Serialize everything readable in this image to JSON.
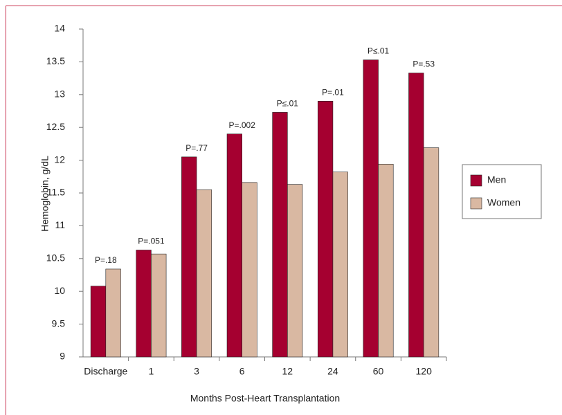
{
  "chart_data": {
    "type": "bar",
    "y_label": "Hemoglobin, g/dL",
    "x_label": "Months Post-Heart Transplantation",
    "categories": [
      "Discharge",
      "1",
      "3",
      "6",
      "12",
      "24",
      "60",
      "120"
    ],
    "series": [
      {
        "name": "Men",
        "color": "#a50030",
        "values": [
          10.08,
          10.63,
          12.05,
          12.4,
          12.73,
          12.9,
          13.53,
          13.33
        ]
      },
      {
        "name": "Women",
        "color": "#d9b8a2",
        "values": [
          10.34,
          10.57,
          11.55,
          11.66,
          11.63,
          11.82,
          11.94,
          12.19
        ]
      }
    ],
    "annotations": [
      "P=.18",
      "P=.051",
      "P=.77",
      "P=.002",
      "P≤.01",
      "P=.01",
      "P≤.01",
      "P=.53"
    ],
    "ylim": [
      9,
      14
    ],
    "yticks": [
      9,
      9.5,
      10,
      10.5,
      11,
      11.5,
      12,
      12.5,
      13,
      13.5,
      14
    ],
    "legend": "right"
  }
}
